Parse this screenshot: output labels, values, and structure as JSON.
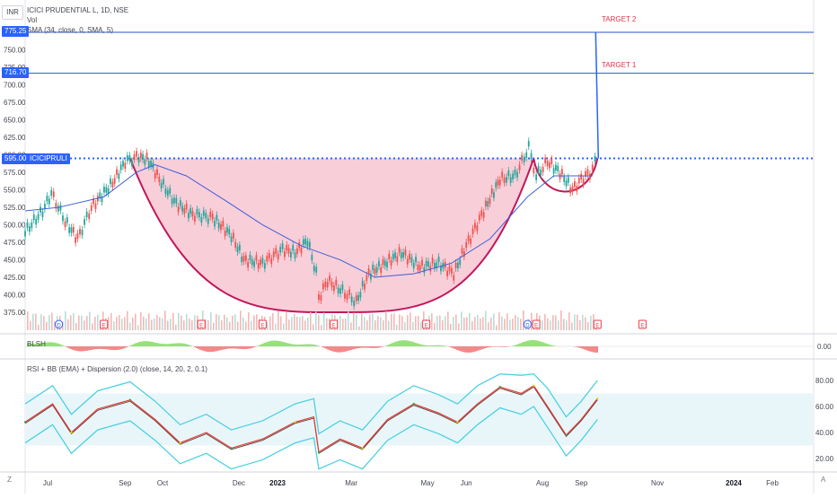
{
  "header": {
    "currency_button": "INR",
    "symbol_line": "ICICI PRUDENTIAL L, 1D, NSE",
    "vol_label": "Vol",
    "sma_label": "SMA (34, close, 0, SMA, 5)"
  },
  "price_badges": {
    "target2": "775.25",
    "target1": "716.70",
    "last": "595.00",
    "last_symbol": "ICICIPRULI"
  },
  "annotations": {
    "target2": "TARGET 2",
    "target1": "TARGET 1"
  },
  "panes": {
    "blsh_label": "BLSH",
    "blsh_zero": "0.00",
    "rsi_label": "RSI + BB (EMA) + Dispersion (2.0) (close, 14, 20, 2, 0.1)"
  },
  "corner_buttons": {
    "left": "Z",
    "right": "A"
  },
  "event_markers": [
    "D",
    "E",
    "E",
    "E",
    "E",
    "E",
    "D",
    "E",
    "E",
    "E"
  ],
  "colors": {
    "price_line": "#2962ff",
    "target_line": "#2b55c7",
    "annotation": "#e0344a",
    "cup_fill": "#f7c6d2",
    "cup_stroke": "#c2185b",
    "sma": "#3f5fd8",
    "up_candle": "#26a69a",
    "down_candle": "#ef5350",
    "rsi_band": "#4dd0e1"
  },
  "chart_data": [
    {
      "type": "line",
      "title": "ICICI PRUDENTIAL L, 1D, NSE",
      "x_ticks": [
        "Jul",
        "Sep",
        "Oct",
        "Dec",
        "2023",
        "Mar",
        "May",
        "Jun",
        "Aug",
        "Sep",
        "Nov",
        "2024",
        "Feb"
      ],
      "y_ticks": [
        375.0,
        400.0,
        425.0,
        450.0,
        475.0,
        500.0,
        525.0,
        550.0,
        575.0,
        600.0,
        625.0,
        650.0,
        675.0,
        700.0,
        725.0,
        750.0
      ],
      "ylim": [
        362,
        790
      ],
      "series": [
        {
          "name": "ICICIPRULI",
          "points": [
            [
              "2022-06-13",
              490
            ],
            [
              "2022-06-27",
              520
            ],
            [
              "2022-07-04",
              545
            ],
            [
              "2022-07-15",
              505
            ],
            [
              "2022-07-25",
              480
            ],
            [
              "2022-08-05",
              525
            ],
            [
              "2022-08-22",
              560
            ],
            [
              "2022-09-01",
              590
            ],
            [
              "2022-09-12",
              598
            ],
            [
              "2022-09-20",
              592
            ],
            [
              "2022-09-30",
              560
            ],
            [
              "2022-10-12",
              530
            ],
            [
              "2022-10-25",
              515
            ],
            [
              "2022-11-10",
              510
            ],
            [
              "2022-11-25",
              485
            ],
            [
              "2022-12-05",
              450
            ],
            [
              "2022-12-20",
              445
            ],
            [
              "2023-01-05",
              465
            ],
            [
              "2023-01-15",
              460
            ],
            [
              "2023-01-25",
              478
            ],
            [
              "2023-02-01",
              430
            ],
            [
              "2023-02-03",
              395
            ],
            [
              "2023-02-10",
              420
            ],
            [
              "2023-02-22",
              405
            ],
            [
              "2023-03-05",
              390
            ],
            [
              "2023-03-15",
              430
            ],
            [
              "2023-03-28",
              445
            ],
            [
              "2023-04-10",
              460
            ],
            [
              "2023-04-25",
              440
            ],
            [
              "2023-05-10",
              445
            ],
            [
              "2023-05-22",
              430
            ],
            [
              "2023-06-01",
              470
            ],
            [
              "2023-06-15",
              520
            ],
            [
              "2023-06-28",
              565
            ],
            [
              "2023-07-10",
              570
            ],
            [
              "2023-07-21",
              610
            ],
            [
              "2023-07-27",
              570
            ],
            [
              "2023-08-05",
              590
            ],
            [
              "2023-08-15",
              575
            ],
            [
              "2023-08-25",
              550
            ],
            [
              "2023-09-01",
              565
            ],
            [
              "2023-09-08",
              575
            ],
            [
              "2023-09-14",
              595
            ]
          ]
        },
        {
          "name": "SMA (34, close, 0, SMA, 5)",
          "points": [
            [
              "2022-06-13",
              520
            ],
            [
              "2022-07-10",
              525
            ],
            [
              "2022-08-15",
              540
            ],
            [
              "2022-09-10",
              575
            ],
            [
              "2022-09-25",
              586
            ],
            [
              "2022-10-20",
              570
            ],
            [
              "2022-11-20",
              535
            ],
            [
              "2022-12-20",
              500
            ],
            [
              "2023-01-20",
              470
            ],
            [
              "2023-02-20",
              450
            ],
            [
              "2023-03-20",
              425
            ],
            [
              "2023-04-20",
              430
            ],
            [
              "2023-05-20",
              445
            ],
            [
              "2023-06-20",
              480
            ],
            [
              "2023-07-20",
              540
            ],
            [
              "2023-08-10",
              570
            ],
            [
              "2023-09-10",
              570
            ]
          ]
        }
      ],
      "levels": [
        {
          "name": "TARGET 2",
          "value": 775.25
        },
        {
          "name": "TARGET 1",
          "value": 716.7
        },
        {
          "name": "ICICIPRULI",
          "value": 595.0
        }
      ],
      "projection": {
        "from": [
          "2023-09-14",
          595
        ],
        "to": [
          "2023-09-14",
          775.25
        ]
      },
      "cup": {
        "rim_left": [
          "2022-09-05",
          595
        ],
        "bottom": [
          "2023-02-20",
          375
        ],
        "rim_right": [
          "2023-07-25",
          595
        ]
      },
      "handle": {
        "left": [
          "2023-07-25",
          595
        ],
        "bottom": [
          "2023-08-18",
          533
        ],
        "right": [
          "2023-09-14",
          595
        ]
      }
    },
    {
      "type": "bar",
      "title": "Vol",
      "note": "volume histogram under price pane"
    },
    {
      "type": "area",
      "title": "BLSH",
      "y_ticks": [
        0.0
      ]
    },
    {
      "type": "line",
      "title": "RSI + BB (EMA) + Dispersion (2.0) (close, 14, 20, 2, 0.1)",
      "y_ticks": [
        20.0,
        40.0,
        60.0,
        80.0
      ],
      "ylim": [
        10,
        90
      ],
      "series": [
        {
          "name": "RSI",
          "points": [
            [
              "2022-06-13",
              48
            ],
            [
              "2022-07-05",
              62
            ],
            [
              "2022-07-20",
              40
            ],
            [
              "2022-08-10",
              58
            ],
            [
              "2022-09-05",
              65
            ],
            [
              "2022-09-25",
              50
            ],
            [
              "2022-10-15",
              32
            ],
            [
              "2022-11-05",
              40
            ],
            [
              "2022-11-25",
              28
            ],
            [
              "2022-12-20",
              35
            ],
            [
              "2023-01-15",
              48
            ],
            [
              "2023-01-30",
              52
            ],
            [
              "2023-02-03",
              25
            ],
            [
              "2023-02-20",
              35
            ],
            [
              "2023-03-10",
              28
            ],
            [
              "2023-03-30",
              50
            ],
            [
              "2023-04-20",
              62
            ],
            [
              "2023-05-10",
              55
            ],
            [
              "2023-05-25",
              48
            ],
            [
              "2023-06-10",
              62
            ],
            [
              "2023-06-28",
              75
            ],
            [
              "2023-07-15",
              70
            ],
            [
              "2023-07-25",
              76
            ],
            [
              "2023-08-05",
              60
            ],
            [
              "2023-08-20",
              38
            ],
            [
              "2023-09-01",
              50
            ],
            [
              "2023-09-14",
              66
            ]
          ]
        }
      ]
    }
  ]
}
